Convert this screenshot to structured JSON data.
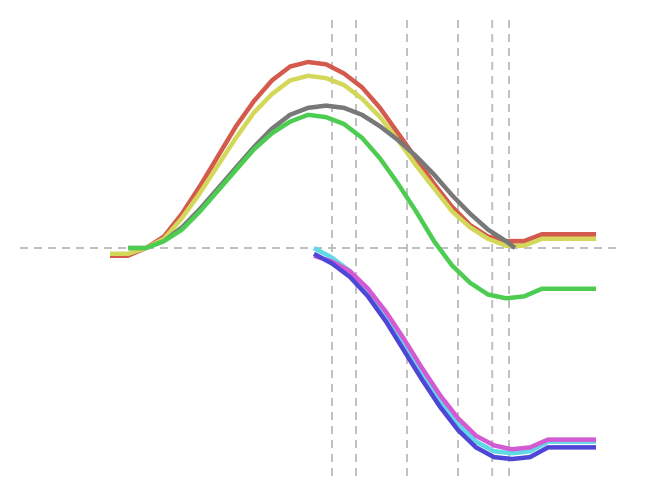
{
  "chart_data": {
    "type": "line",
    "title": "",
    "xlabel": "",
    "ylabel": "",
    "grid": false,
    "legend": "none",
    "xlim": [
      0,
      1
    ],
    "ylim": [
      -1.1,
      0.9
    ],
    "baseline": 0,
    "vlines": [
      0.52,
      0.56,
      0.645,
      0.73,
      0.787,
      0.815
    ],
    "series": [
      {
        "color": "#d35a4d",
        "x": [
          0.15,
          0.18,
          0.21,
          0.24,
          0.27,
          0.3,
          0.33,
          0.36,
          0.39,
          0.42,
          0.45,
          0.48,
          0.51,
          0.54,
          0.57,
          0.6,
          0.63,
          0.66,
          0.69,
          0.72,
          0.75,
          0.78,
          0.81,
          0.84,
          0.87,
          0.9,
          0.96
        ],
        "y": [
          -0.04,
          -0.04,
          0.0,
          0.05,
          0.15,
          0.27,
          0.4,
          0.53,
          0.64,
          0.73,
          0.79,
          0.81,
          0.8,
          0.76,
          0.7,
          0.61,
          0.5,
          0.39,
          0.28,
          0.18,
          0.1,
          0.05,
          0.03,
          0.03,
          0.06,
          0.06,
          0.06
        ]
      },
      {
        "color": "#d4d85a",
        "x": [
          0.15,
          0.18,
          0.21,
          0.24,
          0.27,
          0.3,
          0.33,
          0.36,
          0.39,
          0.42,
          0.45,
          0.48,
          0.51,
          0.54,
          0.57,
          0.6,
          0.63,
          0.66,
          0.69,
          0.72,
          0.75,
          0.78,
          0.81,
          0.84,
          0.87,
          0.9,
          0.96
        ],
        "y": [
          -0.03,
          -0.03,
          0.0,
          0.04,
          0.13,
          0.24,
          0.36,
          0.48,
          0.59,
          0.67,
          0.73,
          0.75,
          0.74,
          0.71,
          0.65,
          0.57,
          0.47,
          0.36,
          0.26,
          0.16,
          0.09,
          0.04,
          0.01,
          0.01,
          0.04,
          0.04,
          0.04
        ]
      },
      {
        "color": "#787878",
        "x": [
          0.18,
          0.21,
          0.24,
          0.27,
          0.3,
          0.33,
          0.36,
          0.39,
          0.42,
          0.45,
          0.48,
          0.51,
          0.54,
          0.57,
          0.6,
          0.63,
          0.66,
          0.69,
          0.72,
          0.75,
          0.78,
          0.81,
          0.825
        ],
        "y": [
          0.0,
          0.0,
          0.03,
          0.09,
          0.17,
          0.26,
          0.35,
          0.44,
          0.52,
          0.58,
          0.61,
          0.62,
          0.61,
          0.58,
          0.53,
          0.47,
          0.4,
          0.32,
          0.23,
          0.15,
          0.08,
          0.03,
          0.0
        ]
      },
      {
        "color": "#4ccd52",
        "x": [
          0.18,
          0.21,
          0.24,
          0.27,
          0.3,
          0.33,
          0.36,
          0.39,
          0.42,
          0.45,
          0.48,
          0.51,
          0.54,
          0.57,
          0.6,
          0.63,
          0.66,
          0.69,
          0.72,
          0.75,
          0.78,
          0.81,
          0.84,
          0.87,
          0.9,
          0.96
        ],
        "y": [
          0.0,
          0.0,
          0.03,
          0.08,
          0.16,
          0.25,
          0.34,
          0.43,
          0.5,
          0.55,
          0.58,
          0.57,
          0.54,
          0.48,
          0.39,
          0.28,
          0.16,
          0.03,
          -0.09,
          -0.18,
          -0.24,
          -0.26,
          -0.25,
          -0.21,
          -0.21,
          -0.21
        ]
      },
      {
        "color": "#5fd9e8",
        "x": [
          0.49,
          0.52,
          0.55,
          0.58,
          0.61,
          0.64,
          0.67,
          0.7,
          0.73,
          0.76,
          0.79,
          0.82,
          0.85,
          0.88,
          0.9,
          0.96
        ],
        "y": [
          0.0,
          -0.05,
          -0.12,
          -0.22,
          -0.35,
          -0.5,
          -0.65,
          -0.79,
          -0.91,
          -1.0,
          -1.05,
          -1.06,
          -1.05,
          -1.0,
          -1.0,
          -1.0
        ]
      },
      {
        "color": "#d45ad4",
        "x": [
          0.49,
          0.52,
          0.55,
          0.58,
          0.61,
          0.64,
          0.67,
          0.7,
          0.73,
          0.76,
          0.79,
          0.82,
          0.85,
          0.88,
          0.9,
          0.96
        ],
        "y": [
          -0.04,
          -0.07,
          -0.12,
          -0.21,
          -0.33,
          -0.47,
          -0.62,
          -0.76,
          -0.88,
          -0.97,
          -1.02,
          -1.04,
          -1.03,
          -0.99,
          -0.99,
          -0.99
        ]
      },
      {
        "color": "#4f46d8",
        "x": [
          0.49,
          0.52,
          0.55,
          0.58,
          0.61,
          0.64,
          0.67,
          0.7,
          0.73,
          0.76,
          0.79,
          0.82,
          0.85,
          0.88,
          0.9,
          0.96
        ],
        "y": [
          -0.03,
          -0.08,
          -0.15,
          -0.25,
          -0.38,
          -0.53,
          -0.68,
          -0.82,
          -0.94,
          -1.03,
          -1.08,
          -1.09,
          -1.08,
          -1.03,
          -1.03,
          -1.03
        ]
      }
    ]
  }
}
